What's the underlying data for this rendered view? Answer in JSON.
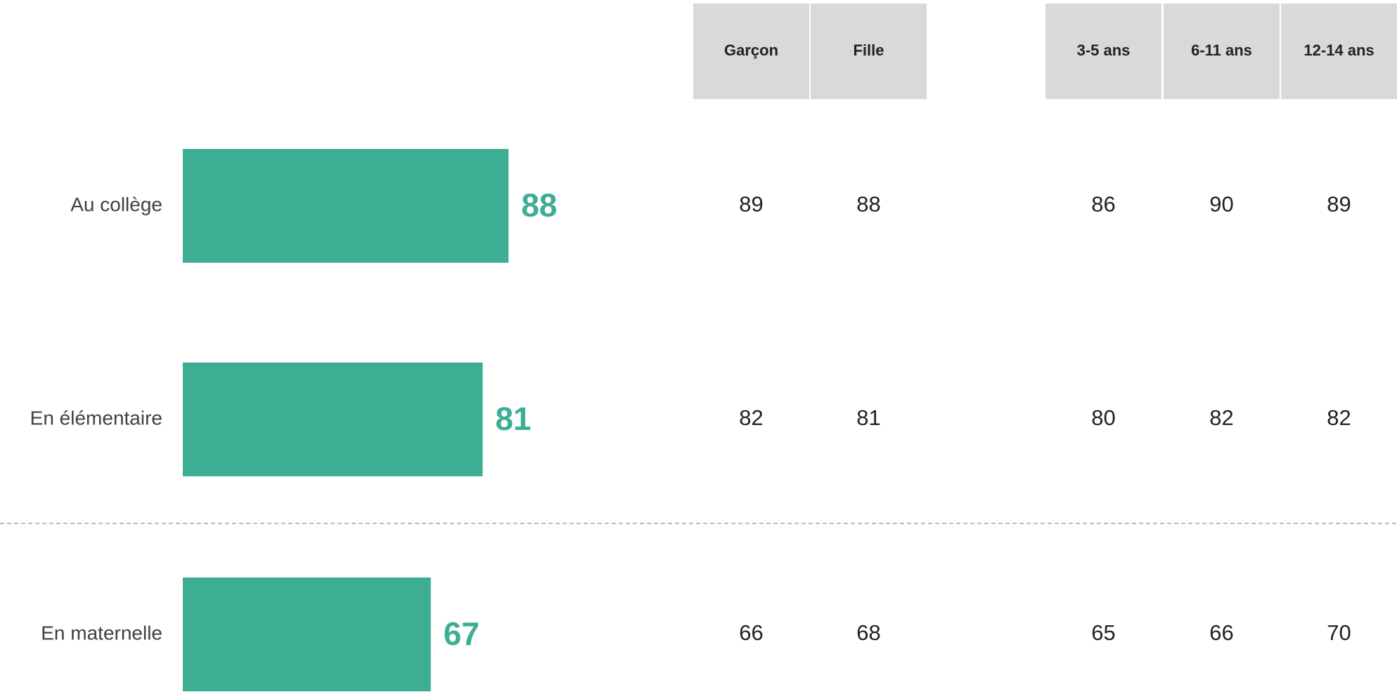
{
  "chart_data": {
    "type": "bar",
    "orientation": "horizontal",
    "categories": [
      "Au collège",
      "En élémentaire",
      "En maternelle"
    ],
    "values": [
      88,
      81,
      67
    ],
    "color": "#3dae94",
    "table": {
      "columns": [
        "Garçon",
        "Fille",
        "3-5 ans",
        "6-11 ans",
        "12-14 ans"
      ],
      "rows": [
        [
          89,
          88,
          86,
          90,
          89
        ],
        [
          82,
          81,
          80,
          82,
          82
        ],
        [
          66,
          68,
          65,
          66,
          70
        ]
      ]
    }
  }
}
